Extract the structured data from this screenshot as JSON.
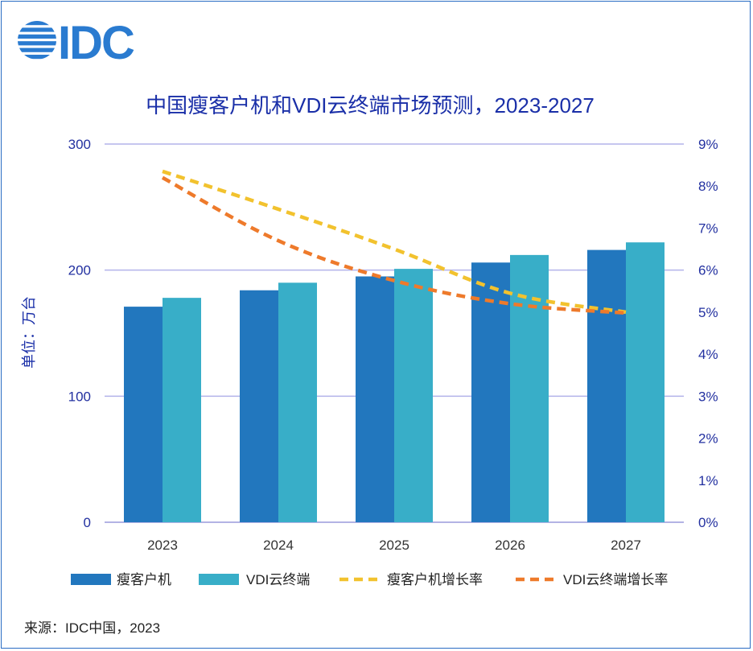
{
  "logo": {
    "text": "IDC",
    "color": "#2a7bd0"
  },
  "chart_data": {
    "type": "bar",
    "title": "中国瘦客户机和VDI云终端市场预测，2023-2027",
    "ylabel": "单位：万台",
    "categories": [
      "2023",
      "2024",
      "2025",
      "2026",
      "2027"
    ],
    "ylim": [
      0,
      300
    ],
    "y_ticks": [
      "0",
      "100",
      "200",
      "300"
    ],
    "y2lim": [
      0,
      9
    ],
    "y2_ticks": [
      "0%",
      "1%",
      "2%",
      "3%",
      "4%",
      "5%",
      "6%",
      "7%",
      "8%",
      "9%"
    ],
    "series": [
      {
        "name": "瘦客户机",
        "type": "bar",
        "axis": "left",
        "color": "#2277be",
        "values": [
          171,
          184,
          195,
          206,
          216
        ]
      },
      {
        "name": "VDI云终端",
        "type": "bar",
        "axis": "left",
        "color": "#38aec8",
        "values": [
          178,
          190,
          201,
          212,
          222
        ]
      },
      {
        "name": "瘦客户机增长率",
        "type": "line",
        "style": "dashed",
        "axis": "right",
        "color": "#f2c22e",
        "values": [
          8.35,
          7.45,
          6.5,
          5.45,
          5.0
        ]
      },
      {
        "name": "VDI云终端增长率",
        "type": "line",
        "style": "dashed",
        "axis": "right",
        "color": "#ee7a2b",
        "values": [
          8.2,
          6.7,
          5.75,
          5.2,
          4.98
        ]
      }
    ],
    "grid": true,
    "legend_position": "bottom"
  },
  "source": "来源：IDC中国，2023"
}
